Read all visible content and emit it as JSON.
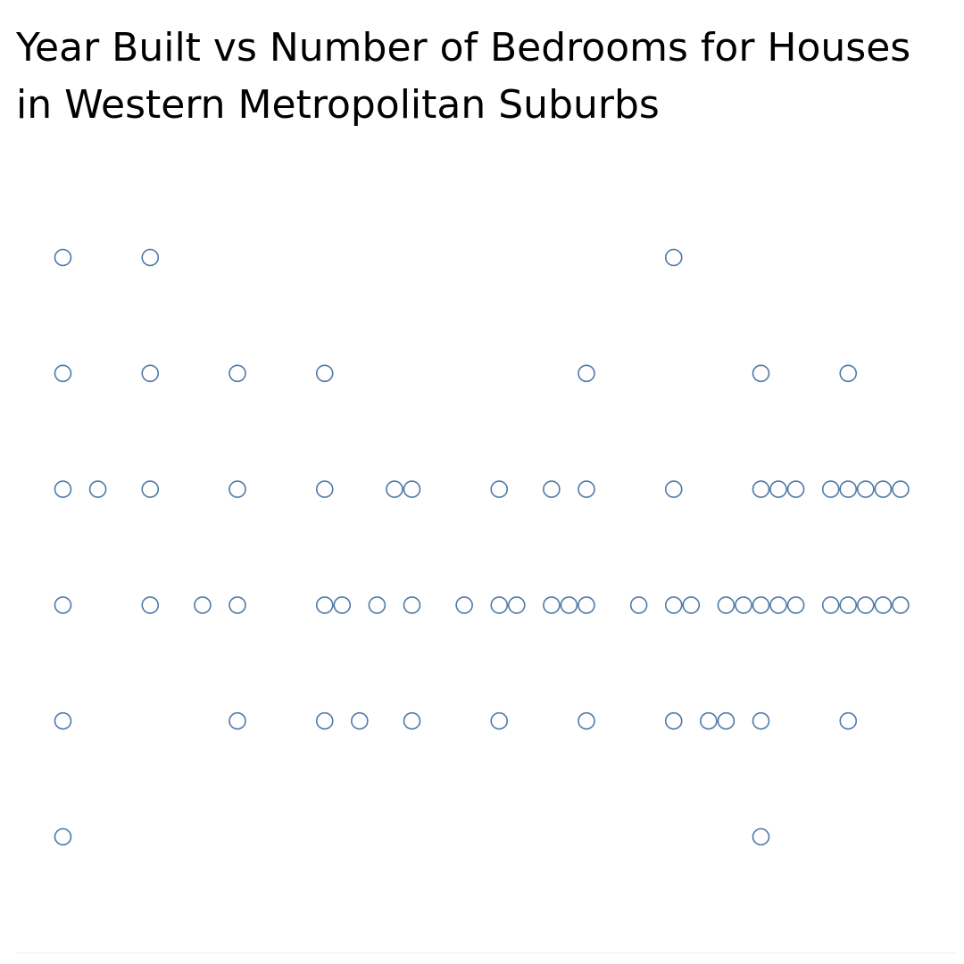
{
  "chart_data": {
    "type": "scatter",
    "title": "Year Built vs Number of Bedrooms for Houses in Western Metropolitan Suburbs",
    "xlabel": "",
    "ylabel": "",
    "grid": false,
    "legend": "none",
    "marker_color": "#4e79a7",
    "marker_style": "hollow-circle",
    "rows": [
      {
        "columns": [
          0,
          5,
          35
        ]
      },
      {
        "columns": [
          0,
          5,
          10,
          15,
          30,
          40,
          45
        ]
      },
      {
        "columns": [
          0,
          2,
          5,
          10,
          15,
          19,
          20,
          25,
          28,
          30,
          35,
          40,
          41,
          42,
          44,
          45,
          46,
          47,
          48
        ]
      },
      {
        "columns": [
          0,
          5,
          8,
          10,
          15,
          16,
          18,
          20,
          23,
          25,
          26,
          28,
          29,
          30,
          33,
          35,
          36,
          38,
          39,
          40,
          41,
          42,
          44,
          45,
          46,
          47,
          48
        ]
      },
      {
        "columns": [
          0,
          10,
          15,
          17,
          20,
          25,
          30,
          35,
          37,
          38,
          40,
          45
        ]
      },
      {
        "columns": [
          0,
          40
        ]
      }
    ]
  }
}
